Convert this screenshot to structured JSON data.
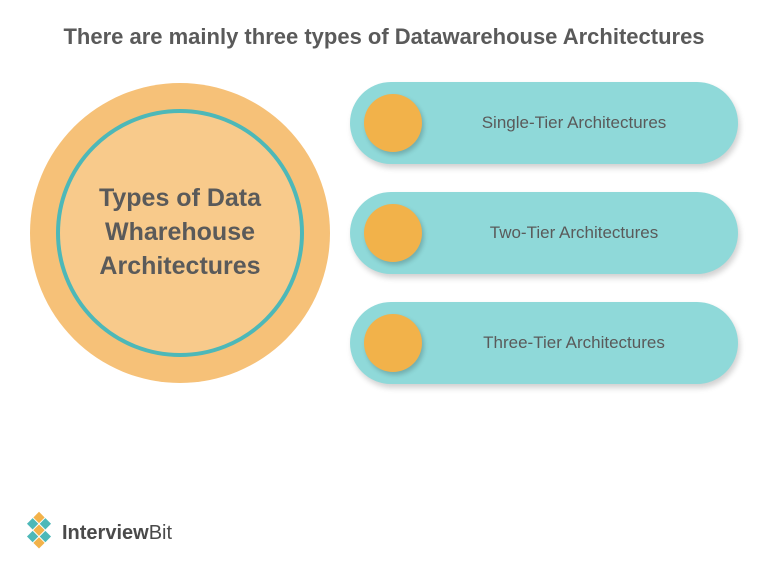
{
  "title": "There are mainly three types of Datawarehouse Architectures",
  "circle": {
    "label": "Types of Data Wharehouse Architectures",
    "outer_fill": "#f6c178",
    "inner_fill": "#f8ca8b",
    "inner_border": "#4db8b8"
  },
  "pills": {
    "bg": "#8fd9d9",
    "dot_fill": "#f2b24a",
    "text_color": "#5a5a5a",
    "items": [
      {
        "label": "Single-Tier Architectures"
      },
      {
        "label": "Two-Tier Architectures"
      },
      {
        "label": "Three-Tier Architectures"
      }
    ]
  },
  "footer": {
    "brand_bold": "Interview",
    "brand_light": "Bit",
    "logo_colors": {
      "orange": "#f2b24a",
      "teal": "#4db8b8",
      "white": "#ffffff"
    }
  },
  "colors": {
    "title_text": "#5a5a5a",
    "background": "#ffffff"
  }
}
